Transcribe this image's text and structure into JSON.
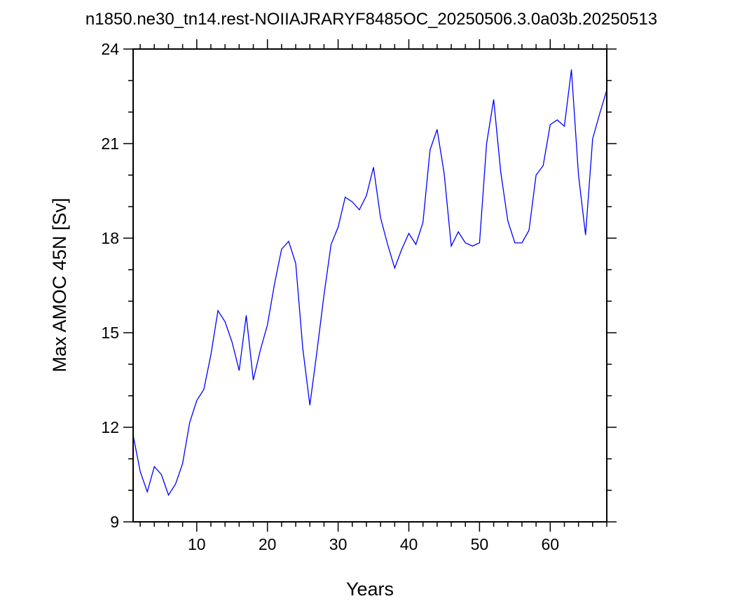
{
  "chart_data": {
    "type": "line",
    "title": "n1850.ne30_tn14.rest-NOIIAJRARYF8485OC_20250506.3.0a03b.20250513",
    "xlabel": "Years",
    "ylabel": "Max AMOC 45N [Sv]",
    "xlim": [
      1,
      68
    ],
    "ylim": [
      9,
      24
    ],
    "xticks": [
      10,
      20,
      30,
      40,
      50,
      60
    ],
    "yticks": [
      9,
      12,
      15,
      18,
      21,
      24
    ],
    "grid": false,
    "line_color": "#0000ff",
    "series": [
      {
        "x": [
          1,
          2,
          3,
          4,
          5,
          6,
          7,
          8,
          9,
          10,
          11,
          12,
          13,
          14,
          15,
          16,
          17,
          18,
          19,
          20,
          21,
          22,
          23,
          24,
          25,
          26,
          27,
          28,
          29,
          30,
          31,
          32,
          33,
          34,
          35,
          36,
          37,
          38,
          39,
          40,
          41,
          42,
          43,
          44,
          45,
          46,
          47,
          48,
          49,
          50,
          51,
          52,
          53,
          54,
          55,
          56,
          57,
          58,
          59,
          60,
          61,
          62,
          63,
          64,
          65,
          66,
          67,
          68
        ],
        "values": [
          11.75,
          10.6,
          9.95,
          10.75,
          10.5,
          9.85,
          10.2,
          10.85,
          12.15,
          12.85,
          13.2,
          14.3,
          15.7,
          15.35,
          14.7,
          13.8,
          15.55,
          13.5,
          14.45,
          15.25,
          16.55,
          17.65,
          17.9,
          17.2,
          14.5,
          12.7,
          14.4,
          16.2,
          17.8,
          18.35,
          19.3,
          19.15,
          18.9,
          19.35,
          20.25,
          18.65,
          17.8,
          17.05,
          17.65,
          18.15,
          17.8,
          18.5,
          20.8,
          21.45,
          20.05,
          17.75,
          18.2,
          17.85,
          17.75,
          17.85,
          21.0,
          22.4,
          20.1,
          18.55,
          17.85,
          17.85,
          18.25,
          20.0,
          20.3,
          21.6,
          21.75,
          21.55,
          23.35,
          20.0,
          18.1,
          21.15,
          21.95,
          22.7
        ]
      }
    ]
  }
}
